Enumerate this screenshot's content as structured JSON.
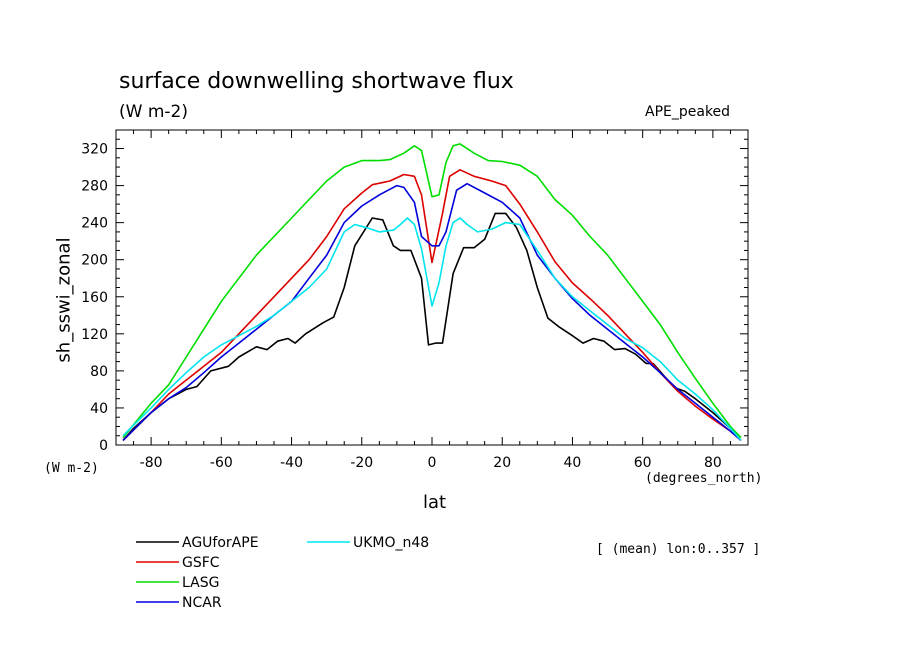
{
  "chart_data": {
    "type": "line",
    "title": "surface downwelling shortwave flux",
    "units": "(W m-2)",
    "dataset": "APE_peaked",
    "xlabel": "lat",
    "ylabel": "sh_sswi_zonal",
    "x_units": "(degrees_north)",
    "y_units": "(W m-2)",
    "note": "[ (mean) lon:0..357 ]",
    "xlim": [
      -90,
      90
    ],
    "ylim": [
      0,
      340
    ],
    "xticks": [
      -80,
      -60,
      -40,
      -20,
      0,
      20,
      40,
      60,
      80
    ],
    "yticks": [
      0,
      40,
      80,
      120,
      160,
      200,
      240,
      280,
      320
    ],
    "grid": false,
    "legend_position": "bottom-left",
    "series": [
      {
        "name": "AGUforAPE",
        "color": "#000000",
        "points": [
          [
            -88,
            5
          ],
          [
            -85,
            18
          ],
          [
            -80,
            35
          ],
          [
            -75,
            50
          ],
          [
            -70,
            60
          ],
          [
            -67,
            63
          ],
          [
            -63,
            80
          ],
          [
            -58,
            85
          ],
          [
            -55,
            95
          ],
          [
            -50,
            106
          ],
          [
            -47,
            103
          ],
          [
            -44,
            112
          ],
          [
            -41,
            115
          ],
          [
            -39,
            110
          ],
          [
            -36,
            120
          ],
          [
            -31,
            132
          ],
          [
            -28,
            138
          ],
          [
            -25,
            170
          ],
          [
            -22,
            215
          ],
          [
            -17,
            245
          ],
          [
            -14,
            243
          ],
          [
            -11,
            215
          ],
          [
            -9,
            210
          ],
          [
            -6,
            210
          ],
          [
            -3,
            180
          ],
          [
            -1,
            108
          ],
          [
            1,
            110
          ],
          [
            3,
            110
          ],
          [
            6,
            185
          ],
          [
            9,
            213
          ],
          [
            12,
            213
          ],
          [
            15,
            222
          ],
          [
            18,
            250
          ],
          [
            21,
            250
          ],
          [
            24,
            235
          ],
          [
            27,
            210
          ],
          [
            30,
            170
          ],
          [
            33,
            137
          ],
          [
            36,
            128
          ],
          [
            40,
            118
          ],
          [
            43,
            110
          ],
          [
            46,
            115
          ],
          [
            49,
            112
          ],
          [
            52,
            103
          ],
          [
            55,
            104
          ],
          [
            58,
            98
          ],
          [
            61,
            88
          ],
          [
            63,
            88
          ],
          [
            66,
            75
          ],
          [
            69,
            62
          ],
          [
            72,
            58
          ],
          [
            75,
            50
          ],
          [
            80,
            35
          ],
          [
            85,
            18
          ],
          [
            88,
            5
          ]
        ]
      },
      {
        "name": "GSFC",
        "color": "#dd0000",
        "points": [
          [
            -88,
            5
          ],
          [
            -80,
            35
          ],
          [
            -75,
            55
          ],
          [
            -70,
            70
          ],
          [
            -65,
            85
          ],
          [
            -60,
            100
          ],
          [
            -55,
            120
          ],
          [
            -50,
            140
          ],
          [
            -45,
            160
          ],
          [
            -40,
            180
          ],
          [
            -35,
            200
          ],
          [
            -30,
            225
          ],
          [
            -25,
            255
          ],
          [
            -20,
            272
          ],
          [
            -17,
            281
          ],
          [
            -12,
            285
          ],
          [
            -8,
            292
          ],
          [
            -5,
            290
          ],
          [
            -3,
            270
          ],
          [
            0,
            197
          ],
          [
            3,
            250
          ],
          [
            5,
            290
          ],
          [
            8,
            297
          ],
          [
            12,
            290
          ],
          [
            17,
            285
          ],
          [
            21,
            280
          ],
          [
            25,
            260
          ],
          [
            30,
            230
          ],
          [
            35,
            198
          ],
          [
            40,
            175
          ],
          [
            45,
            158
          ],
          [
            50,
            140
          ],
          [
            55,
            120
          ],
          [
            60,
            100
          ],
          [
            65,
            78
          ],
          [
            70,
            58
          ],
          [
            75,
            42
          ],
          [
            80,
            28
          ],
          [
            85,
            15
          ],
          [
            88,
            5
          ]
        ]
      },
      {
        "name": "LASG",
        "color": "#00dd00",
        "points": [
          [
            -88,
            8
          ],
          [
            -80,
            45
          ],
          [
            -75,
            65
          ],
          [
            -70,
            95
          ],
          [
            -65,
            125
          ],
          [
            -60,
            155
          ],
          [
            -55,
            180
          ],
          [
            -50,
            205
          ],
          [
            -45,
            225
          ],
          [
            -40,
            245
          ],
          [
            -35,
            265
          ],
          [
            -30,
            285
          ],
          [
            -25,
            300
          ],
          [
            -20,
            307
          ],
          [
            -15,
            307
          ],
          [
            -12,
            308
          ],
          [
            -8,
            315
          ],
          [
            -5,
            323
          ],
          [
            -3,
            318
          ],
          [
            0,
            268
          ],
          [
            2,
            270
          ],
          [
            4,
            305
          ],
          [
            6,
            323
          ],
          [
            8,
            325
          ],
          [
            12,
            315
          ],
          [
            16,
            307
          ],
          [
            20,
            306
          ],
          [
            25,
            302
          ],
          [
            30,
            290
          ],
          [
            35,
            265
          ],
          [
            40,
            248
          ],
          [
            45,
            225
          ],
          [
            50,
            205
          ],
          [
            55,
            180
          ],
          [
            60,
            155
          ],
          [
            65,
            130
          ],
          [
            70,
            100
          ],
          [
            75,
            72
          ],
          [
            80,
            45
          ],
          [
            85,
            20
          ],
          [
            88,
            8
          ]
        ]
      },
      {
        "name": "NCAR",
        "color": "#0000dd",
        "points": [
          [
            -88,
            5
          ],
          [
            -80,
            35
          ],
          [
            -75,
            50
          ],
          [
            -70,
            62
          ],
          [
            -65,
            78
          ],
          [
            -60,
            95
          ],
          [
            -55,
            110
          ],
          [
            -50,
            125
          ],
          [
            -45,
            140
          ],
          [
            -40,
            155
          ],
          [
            -35,
            180
          ],
          [
            -30,
            205
          ],
          [
            -25,
            240
          ],
          [
            -20,
            258
          ],
          [
            -15,
            270
          ],
          [
            -10,
            280
          ],
          [
            -8,
            278
          ],
          [
            -5,
            262
          ],
          [
            -3,
            225
          ],
          [
            0,
            215
          ],
          [
            2,
            215
          ],
          [
            4,
            230
          ],
          [
            7,
            275
          ],
          [
            10,
            282
          ],
          [
            15,
            272
          ],
          [
            20,
            262
          ],
          [
            25,
            245
          ],
          [
            30,
            205
          ],
          [
            35,
            180
          ],
          [
            40,
            158
          ],
          [
            45,
            140
          ],
          [
            50,
            125
          ],
          [
            55,
            110
          ],
          [
            60,
            95
          ],
          [
            65,
            78
          ],
          [
            70,
            60
          ],
          [
            75,
            45
          ],
          [
            80,
            30
          ],
          [
            85,
            15
          ],
          [
            88,
            5
          ]
        ]
      },
      {
        "name": "UKMO_n48",
        "color": "#00e5ee",
        "points": [
          [
            -88,
            10
          ],
          [
            -80,
            40
          ],
          [
            -75,
            60
          ],
          [
            -70,
            78
          ],
          [
            -65,
            95
          ],
          [
            -60,
            108
          ],
          [
            -55,
            118
          ],
          [
            -50,
            128
          ],
          [
            -45,
            140
          ],
          [
            -40,
            155
          ],
          [
            -35,
            170
          ],
          [
            -30,
            190
          ],
          [
            -25,
            230
          ],
          [
            -22,
            238
          ],
          [
            -19,
            235
          ],
          [
            -15,
            230
          ],
          [
            -11,
            232
          ],
          [
            -9,
            238
          ],
          [
            -7,
            245
          ],
          [
            -5,
            238
          ],
          [
            -3,
            212
          ],
          [
            0,
            150
          ],
          [
            2,
            175
          ],
          [
            4,
            215
          ],
          [
            6,
            240
          ],
          [
            8,
            245
          ],
          [
            10,
            238
          ],
          [
            13,
            230
          ],
          [
            17,
            233
          ],
          [
            21,
            240
          ],
          [
            25,
            238
          ],
          [
            30,
            210
          ],
          [
            35,
            180
          ],
          [
            40,
            160
          ],
          [
            45,
            145
          ],
          [
            50,
            130
          ],
          [
            55,
            115
          ],
          [
            60,
            105
          ],
          [
            65,
            90
          ],
          [
            70,
            70
          ],
          [
            75,
            55
          ],
          [
            80,
            38
          ],
          [
            85,
            18
          ],
          [
            88,
            5
          ]
        ]
      }
    ]
  }
}
